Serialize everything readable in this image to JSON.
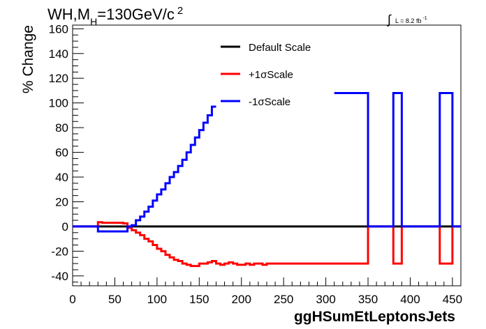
{
  "header": {
    "title_main": "WH,M",
    "title_sub": "H",
    "title_rest": "=130GeV/c",
    "title_sup": "2",
    "lumi_text": "L = 8.2 fb",
    "lumi_sup": "-1",
    "integral_symbol": "∫"
  },
  "chart_data": {
    "type": "line",
    "xlabel": "ggHSumEtLeptonsJets",
    "ylabel": "% Change",
    "xlim": [
      0,
      460
    ],
    "ylim": [
      -48,
      163
    ],
    "x_ticks": [
      0,
      50,
      100,
      150,
      200,
      250,
      300,
      350,
      400,
      450
    ],
    "y_ticks": [
      -40,
      -20,
      0,
      20,
      40,
      60,
      80,
      100,
      120,
      140,
      160
    ],
    "legend": [
      {
        "name": "Default Scale",
        "color": "#000000"
      },
      {
        "name": "+1σScale",
        "color": "#ff0000"
      },
      {
        "name": "-1σScale",
        "color": "#0000ff"
      }
    ],
    "bin_edges": [
      0,
      5,
      10,
      15,
      20,
      25,
      30,
      35,
      40,
      45,
      50,
      55,
      60,
      65,
      70,
      75,
      80,
      85,
      90,
      95,
      100,
      105,
      110,
      115,
      120,
      125,
      130,
      135,
      140,
      145,
      150,
      155,
      160,
      165,
      170,
      175,
      180,
      185,
      190,
      195,
      200,
      205,
      210,
      215,
      220,
      225,
      230,
      235,
      240,
      245,
      250,
      255,
      260,
      265,
      270,
      275,
      280,
      285,
      290,
      295,
      300,
      305,
      310,
      315,
      320,
      325,
      330,
      335,
      340,
      345,
      350,
      355,
      360,
      365,
      370,
      375,
      380,
      385,
      390,
      395,
      400,
      405,
      410,
      415,
      420,
      425,
      430,
      435,
      440,
      445,
      450,
      455,
      460
    ],
    "series": [
      {
        "name": "Default Scale",
        "color": "#000000",
        "values": [
          0,
          0,
          0,
          0,
          0,
          0,
          0,
          0,
          0,
          0,
          0,
          0,
          0,
          0,
          0,
          0,
          0,
          0,
          0,
          0,
          0,
          0,
          0,
          0,
          0,
          0,
          0,
          0,
          0,
          0,
          0,
          0,
          0,
          0,
          0,
          0,
          0,
          0,
          0,
          0,
          0,
          0,
          0,
          0,
          0,
          0,
          0,
          0,
          0,
          0,
          0,
          0,
          0,
          0,
          0,
          0,
          0,
          0,
          0,
          0,
          0,
          0,
          0,
          0,
          0,
          0,
          0,
          0,
          0,
          0,
          0,
          0,
          0,
          0,
          0,
          0,
          0,
          0,
          0,
          0,
          0,
          0,
          0,
          0,
          0,
          0,
          0,
          0,
          0,
          0,
          0,
          0
        ]
      },
      {
        "name": "+1σScale",
        "color": "#ff0000",
        "values": [
          0,
          0,
          0,
          0,
          0,
          0,
          3.5,
          3,
          3,
          3,
          3,
          3,
          2.5,
          -1,
          -3,
          -5,
          -7,
          -10,
          -12,
          -15,
          -18,
          -20,
          -23,
          -25,
          -27,
          -28,
          -30,
          -31,
          -32,
          -32,
          -30,
          -30,
          -29,
          -28,
          -30,
          -31,
          -30,
          -29,
          -30,
          -31,
          -31,
          -30,
          -31,
          -30,
          -30,
          -31,
          -30,
          -30,
          -30,
          -30,
          -30,
          -30,
          -30,
          -30,
          -30,
          -30,
          -30,
          -30,
          -30,
          -30,
          -30,
          -30,
          -30,
          -30,
          -30,
          -30,
          -30,
          -30,
          -30,
          -30,
          0,
          0,
          0,
          0,
          0,
          0,
          -30,
          -30,
          0,
          0,
          0,
          0,
          0,
          0,
          0,
          0,
          0,
          -30,
          -30,
          -30,
          0,
          0
        ]
      },
      {
        "name": "-1σScale",
        "color": "#0000ff",
        "values": [
          0,
          0,
          0,
          0,
          0,
          0,
          -4,
          -4,
          -4,
          -4,
          -4,
          -4,
          -4,
          0,
          1,
          5,
          8,
          12,
          16,
          21,
          26,
          30,
          35,
          40,
          44,
          49,
          54,
          60,
          66,
          72,
          78,
          84,
          90,
          97,
          null,
          null,
          null,
          null,
          null,
          null,
          null,
          null,
          null,
          null,
          null,
          null,
          null,
          null,
          null,
          null,
          null,
          null,
          null,
          null,
          null,
          null,
          null,
          null,
          null,
          null,
          null,
          null,
          108,
          108,
          108,
          108,
          108,
          108,
          108,
          108,
          0,
          0,
          0,
          0,
          0,
          0,
          108,
          108,
          0,
          0,
          0,
          0,
          0,
          0,
          0,
          0,
          0,
          108,
          108,
          108,
          0,
          0
        ]
      }
    ]
  }
}
